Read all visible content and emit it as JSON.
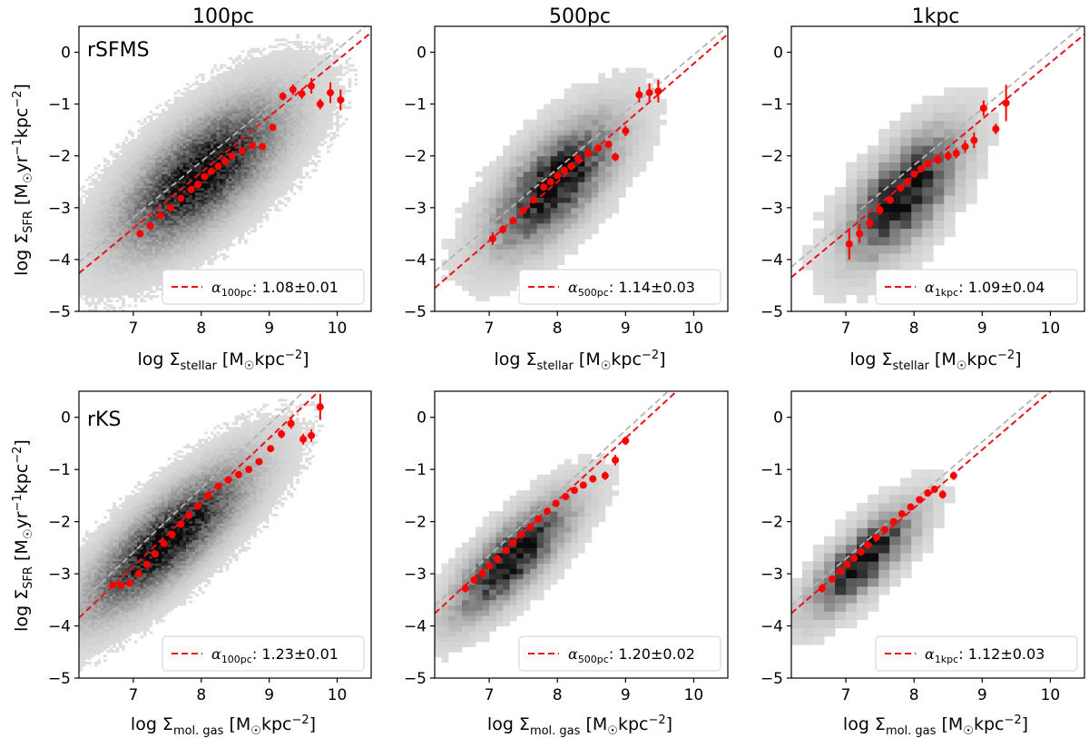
{
  "figure": {
    "type": "scatter",
    "columns": [
      "100pc",
      "500pc",
      "1kpc"
    ],
    "rows": [
      {
        "name": "rSFMS",
        "xlabel_text": "log Σ",
        "xlabel_sub": "stellar",
        "xlabel_unit": " [M",
        "xlabel_unit2": "kpc",
        "xlabel_exp": "−2",
        "xlabel_close": "]"
      },
      {
        "name": "rKS",
        "xlabel_text": "log Σ",
        "xlabel_sub": "mol. gas",
        "xlabel_unit": " [M",
        "xlabel_unit2": "kpc",
        "xlabel_exp": "−2",
        "xlabel_close": "]"
      }
    ],
    "ylabel": {
      "pre": "log Σ",
      "sub": "SFR",
      "unit": " [M",
      "mid": "yr",
      "exp1": "−1",
      "unit2": "kpc",
      "exp2": "−2",
      "close": "]"
    },
    "colors": {
      "fit": "#e8141c",
      "points": "#ff0000",
      "reference": "#b4b4b4",
      "density": "#000000"
    }
  },
  "chart_data": [
    {
      "panel": "rSFMS-100pc",
      "title": "100pc",
      "type": "scatter",
      "xlim": [
        6.2,
        10.5
      ],
      "ylim": [
        -5,
        0.5
      ],
      "xticks": [
        7,
        8,
        9,
        10
      ],
      "yticks": [
        0,
        -1,
        -2,
        -3,
        -4,
        -5
      ],
      "density": {
        "cx": 8.0,
        "cy": -2.35,
        "sx": 0.72,
        "sy": 0.85,
        "rho": 0.7,
        "bin": 0.045,
        "span": 3.2,
        "seed": 11
      },
      "fit": {
        "slope": 1.08,
        "intercept": -10.96
      },
      "reference": {
        "slope": 1.08,
        "intercept": -10.75
      },
      "legend": {
        "alpha_sub": "100pc",
        "value": "1.08±0.01"
      },
      "points": [
        {
          "x": 7.1,
          "y": -3.5,
          "err": 0.05
        },
        {
          "x": 7.25,
          "y": -3.35,
          "err": 0.05
        },
        {
          "x": 7.4,
          "y": -3.15,
          "err": 0.05
        },
        {
          "x": 7.55,
          "y": -3.0,
          "err": 0.04
        },
        {
          "x": 7.7,
          "y": -2.82,
          "err": 0.04
        },
        {
          "x": 7.85,
          "y": -2.65,
          "err": 0.04
        },
        {
          "x": 7.95,
          "y": -2.55,
          "err": 0.04
        },
        {
          "x": 8.05,
          "y": -2.4,
          "err": 0.04
        },
        {
          "x": 8.15,
          "y": -2.3,
          "err": 0.04
        },
        {
          "x": 8.25,
          "y": -2.2,
          "err": 0.04
        },
        {
          "x": 8.35,
          "y": -2.1,
          "err": 0.04
        },
        {
          "x": 8.45,
          "y": -2.0,
          "err": 0.04
        },
        {
          "x": 8.6,
          "y": -1.9,
          "err": 0.04
        },
        {
          "x": 8.75,
          "y": -1.8,
          "err": 0.05
        },
        {
          "x": 8.9,
          "y": -1.82,
          "err": 0.05
        },
        {
          "x": 9.05,
          "y": -1.45,
          "err": 0.06
        },
        {
          "x": 9.2,
          "y": -0.85,
          "err": 0.08
        },
        {
          "x": 9.35,
          "y": -0.72,
          "err": 0.1
        },
        {
          "x": 9.48,
          "y": -0.8,
          "err": 0.1
        },
        {
          "x": 9.62,
          "y": -0.65,
          "err": 0.15
        },
        {
          "x": 9.75,
          "y": -1.0,
          "err": 0.1
        },
        {
          "x": 9.9,
          "y": -0.78,
          "err": 0.2
        },
        {
          "x": 10.05,
          "y": -0.92,
          "err": 0.2
        }
      ]
    },
    {
      "panel": "rSFMS-500pc",
      "title": "500pc",
      "type": "scatter",
      "xlim": [
        6.2,
        10.5
      ],
      "ylim": [
        -5,
        0.5
      ],
      "xticks": [
        7,
        8,
        9,
        10
      ],
      "yticks": [
        0,
        -1,
        -2,
        -3,
        -4,
        -5
      ],
      "density": {
        "cx": 7.95,
        "cy": -2.55,
        "sx": 0.55,
        "sy": 0.75,
        "rho": 0.68,
        "bin": 0.1,
        "span": 3.0,
        "seed": 23
      },
      "fit": {
        "slope": 1.14,
        "intercept": -11.62
      },
      "reference": {
        "slope": 1.1,
        "intercept": -11.05
      },
      "legend": {
        "alpha_sub": "500pc",
        "value": "1.14±0.03"
      },
      "points": [
        {
          "x": 7.05,
          "y": -3.6,
          "err": 0.12
        },
        {
          "x": 7.2,
          "y": -3.42,
          "err": 0.08
        },
        {
          "x": 7.35,
          "y": -3.25,
          "err": 0.06
        },
        {
          "x": 7.5,
          "y": -3.05,
          "err": 0.05
        },
        {
          "x": 7.65,
          "y": -2.85,
          "err": 0.05
        },
        {
          "x": 7.8,
          "y": -2.6,
          "err": 0.05
        },
        {
          "x": 7.9,
          "y": -2.5,
          "err": 0.05
        },
        {
          "x": 8.0,
          "y": -2.38,
          "err": 0.05
        },
        {
          "x": 8.1,
          "y": -2.28,
          "err": 0.05
        },
        {
          "x": 8.2,
          "y": -2.2,
          "err": 0.05
        },
        {
          "x": 8.3,
          "y": -2.05,
          "err": 0.05
        },
        {
          "x": 8.45,
          "y": -1.95,
          "err": 0.05
        },
        {
          "x": 8.6,
          "y": -1.85,
          "err": 0.06
        },
        {
          "x": 8.75,
          "y": -1.78,
          "err": 0.07
        },
        {
          "x": 8.85,
          "y": -2.02,
          "err": 0.08
        },
        {
          "x": 9.0,
          "y": -1.52,
          "err": 0.1
        },
        {
          "x": 9.2,
          "y": -0.82,
          "err": 0.15
        },
        {
          "x": 9.35,
          "y": -0.78,
          "err": 0.18
        },
        {
          "x": 9.48,
          "y": -0.75,
          "err": 0.22
        }
      ]
    },
    {
      "panel": "rSFMS-1kpc",
      "title": "1kpc",
      "type": "scatter",
      "xlim": [
        6.2,
        10.5
      ],
      "ylim": [
        -5,
        0.5
      ],
      "xticks": [
        7,
        8,
        9,
        10
      ],
      "yticks": [
        0,
        -1,
        -2,
        -3,
        -4,
        -5
      ],
      "density": {
        "cx": 7.85,
        "cy": -2.75,
        "sx": 0.48,
        "sy": 0.72,
        "rho": 0.65,
        "bin": 0.16,
        "span": 3.0,
        "seed": 37
      },
      "fit": {
        "slope": 1.09,
        "intercept": -11.1
      },
      "reference": {
        "slope": 1.09,
        "intercept": -10.9
      },
      "legend": {
        "alpha_sub": "1kpc",
        "value": "1.09±0.04"
      },
      "points": [
        {
          "x": 7.05,
          "y": -3.7,
          "err": 0.3
        },
        {
          "x": 7.2,
          "y": -3.5,
          "err": 0.18
        },
        {
          "x": 7.35,
          "y": -3.3,
          "err": 0.12
        },
        {
          "x": 7.5,
          "y": -3.05,
          "err": 0.09
        },
        {
          "x": 7.65,
          "y": -2.85,
          "err": 0.08
        },
        {
          "x": 7.8,
          "y": -2.62,
          "err": 0.07
        },
        {
          "x": 7.9,
          "y": -2.5,
          "err": 0.07
        },
        {
          "x": 8.0,
          "y": -2.35,
          "err": 0.07
        },
        {
          "x": 8.1,
          "y": -2.25,
          "err": 0.07
        },
        {
          "x": 8.2,
          "y": -2.15,
          "err": 0.07
        },
        {
          "x": 8.35,
          "y": -2.08,
          "err": 0.08
        },
        {
          "x": 8.5,
          "y": -2.0,
          "err": 0.09
        },
        {
          "x": 8.62,
          "y": -1.95,
          "err": 0.1
        },
        {
          "x": 8.75,
          "y": -1.82,
          "err": 0.12
        },
        {
          "x": 8.88,
          "y": -1.7,
          "err": 0.15
        },
        {
          "x": 9.02,
          "y": -1.08,
          "err": 0.15
        },
        {
          "x": 9.2,
          "y": -1.48,
          "err": 0.1
        },
        {
          "x": 9.35,
          "y": -0.98,
          "err": 0.35
        }
      ]
    },
    {
      "panel": "rKS-100pc",
      "type": "scatter",
      "xlim": [
        6.2,
        10.5
      ],
      "ylim": [
        -5,
        0.5
      ],
      "xticks": [
        7,
        8,
        9,
        10
      ],
      "yticks": [
        0,
        -1,
        -2,
        -3,
        -4,
        -5
      ],
      "density": {
        "cx": 7.5,
        "cy": -2.35,
        "sx": 0.72,
        "sy": 0.85,
        "rho": 0.82,
        "bin": 0.045,
        "span": 3.2,
        "seed": 53
      },
      "fit": {
        "slope": 1.23,
        "intercept": -11.47
      },
      "reference": {
        "slope": 1.23,
        "intercept": -11.2
      },
      "legend": {
        "alpha_sub": "100pc",
        "value": "1.23±0.01"
      },
      "points": [
        {
          "x": 6.7,
          "y": -3.22,
          "err": 0.05
        },
        {
          "x": 6.82,
          "y": -3.22,
          "err": 0.05
        },
        {
          "x": 6.95,
          "y": -3.18,
          "err": 0.05
        },
        {
          "x": 7.08,
          "y": -3.0,
          "err": 0.04
        },
        {
          "x": 7.2,
          "y": -2.82,
          "err": 0.04
        },
        {
          "x": 7.32,
          "y": -2.62,
          "err": 0.04
        },
        {
          "x": 7.45,
          "y": -2.42,
          "err": 0.04
        },
        {
          "x": 7.57,
          "y": -2.25,
          "err": 0.04
        },
        {
          "x": 7.7,
          "y": -2.05,
          "err": 0.04
        },
        {
          "x": 7.82,
          "y": -1.88,
          "err": 0.04
        },
        {
          "x": 7.95,
          "y": -1.7,
          "err": 0.04
        },
        {
          "x": 8.1,
          "y": -1.5,
          "err": 0.04
        },
        {
          "x": 8.25,
          "y": -1.32,
          "err": 0.04
        },
        {
          "x": 8.4,
          "y": -1.2,
          "err": 0.04
        },
        {
          "x": 8.55,
          "y": -1.1,
          "err": 0.05
        },
        {
          "x": 8.7,
          "y": -1.0,
          "err": 0.05
        },
        {
          "x": 8.85,
          "y": -0.85,
          "err": 0.06
        },
        {
          "x": 9.02,
          "y": -0.6,
          "err": 0.06
        },
        {
          "x": 9.18,
          "y": -0.32,
          "err": 0.08
        },
        {
          "x": 9.32,
          "y": -0.12,
          "err": 0.1
        },
        {
          "x": 9.5,
          "y": -0.42,
          "err": 0.1
        },
        {
          "x": 9.62,
          "y": -0.35,
          "err": 0.12
        },
        {
          "x": 9.75,
          "y": 0.2,
          "err": 0.25
        }
      ]
    },
    {
      "panel": "rKS-500pc",
      "type": "scatter",
      "xlim": [
        6.2,
        10.5
      ],
      "ylim": [
        -5,
        0.5
      ],
      "xticks": [
        7,
        8,
        9,
        10
      ],
      "yticks": [
        0,
        -1,
        -2,
        -3,
        -4,
        -5
      ],
      "density": {
        "cx": 7.35,
        "cy": -2.7,
        "sx": 0.52,
        "sy": 0.68,
        "rho": 0.8,
        "bin": 0.1,
        "span": 3.0,
        "seed": 71
      },
      "fit": {
        "slope": 1.2,
        "intercept": -11.2
      },
      "reference": {
        "slope": 1.2,
        "intercept": -11.05
      },
      "legend": {
        "alpha_sub": "500pc",
        "value": "1.20±0.02"
      },
      "points": [
        {
          "x": 6.65,
          "y": -3.28,
          "err": 0.08
        },
        {
          "x": 6.78,
          "y": -3.12,
          "err": 0.06
        },
        {
          "x": 6.9,
          "y": -3.0,
          "err": 0.05
        },
        {
          "x": 7.0,
          "y": -2.85,
          "err": 0.05
        },
        {
          "x": 7.12,
          "y": -2.72,
          "err": 0.05
        },
        {
          "x": 7.25,
          "y": -2.55,
          "err": 0.05
        },
        {
          "x": 7.35,
          "y": -2.4,
          "err": 0.05
        },
        {
          "x": 7.47,
          "y": -2.25,
          "err": 0.05
        },
        {
          "x": 7.6,
          "y": -2.1,
          "err": 0.05
        },
        {
          "x": 7.72,
          "y": -1.95,
          "err": 0.05
        },
        {
          "x": 7.85,
          "y": -1.8,
          "err": 0.05
        },
        {
          "x": 7.98,
          "y": -1.65,
          "err": 0.05
        },
        {
          "x": 8.12,
          "y": -1.52,
          "err": 0.05
        },
        {
          "x": 8.25,
          "y": -1.4,
          "err": 0.06
        },
        {
          "x": 8.38,
          "y": -1.3,
          "err": 0.06
        },
        {
          "x": 8.52,
          "y": -1.18,
          "err": 0.07
        },
        {
          "x": 8.7,
          "y": -1.12,
          "err": 0.08
        },
        {
          "x": 8.85,
          "y": -0.82,
          "err": 0.1
        },
        {
          "x": 9.0,
          "y": -0.45,
          "err": 0.08
        }
      ]
    },
    {
      "panel": "rKS-1kpc",
      "type": "scatter",
      "xlim": [
        6.2,
        10.5
      ],
      "ylim": [
        -5,
        0.5
      ],
      "xticks": [
        7,
        8,
        9,
        10
      ],
      "yticks": [
        0,
        -1,
        -2,
        -3,
        -4,
        -5
      ],
      "density": {
        "cx": 7.25,
        "cy": -2.75,
        "sx": 0.45,
        "sy": 0.58,
        "rho": 0.78,
        "bin": 0.16,
        "span": 3.0,
        "seed": 89
      },
      "fit": {
        "slope": 1.12,
        "intercept": -10.7
      },
      "reference": {
        "slope": 1.12,
        "intercept": -10.55
      },
      "legend": {
        "alpha_sub": "1kpc",
        "value": "1.12±0.03"
      },
      "points": [
        {
          "x": 6.65,
          "y": -3.28,
          "err": 0.08
        },
        {
          "x": 6.8,
          "y": -3.1,
          "err": 0.06
        },
        {
          "x": 6.92,
          "y": -2.95,
          "err": 0.06
        },
        {
          "x": 7.02,
          "y": -2.82,
          "err": 0.05
        },
        {
          "x": 7.12,
          "y": -2.7,
          "err": 0.05
        },
        {
          "x": 7.22,
          "y": -2.58,
          "err": 0.05
        },
        {
          "x": 7.32,
          "y": -2.45,
          "err": 0.05
        },
        {
          "x": 7.45,
          "y": -2.3,
          "err": 0.05
        },
        {
          "x": 7.57,
          "y": -2.15,
          "err": 0.05
        },
        {
          "x": 7.7,
          "y": -2.0,
          "err": 0.05
        },
        {
          "x": 7.82,
          "y": -1.85,
          "err": 0.05
        },
        {
          "x": 7.95,
          "y": -1.72,
          "err": 0.05
        },
        {
          "x": 8.08,
          "y": -1.58,
          "err": 0.06
        },
        {
          "x": 8.2,
          "y": -1.45,
          "err": 0.06
        },
        {
          "x": 8.3,
          "y": -1.38,
          "err": 0.07
        },
        {
          "x": 8.42,
          "y": -1.48,
          "err": 0.08
        },
        {
          "x": 8.58,
          "y": -1.12,
          "err": 0.08
        }
      ]
    }
  ]
}
